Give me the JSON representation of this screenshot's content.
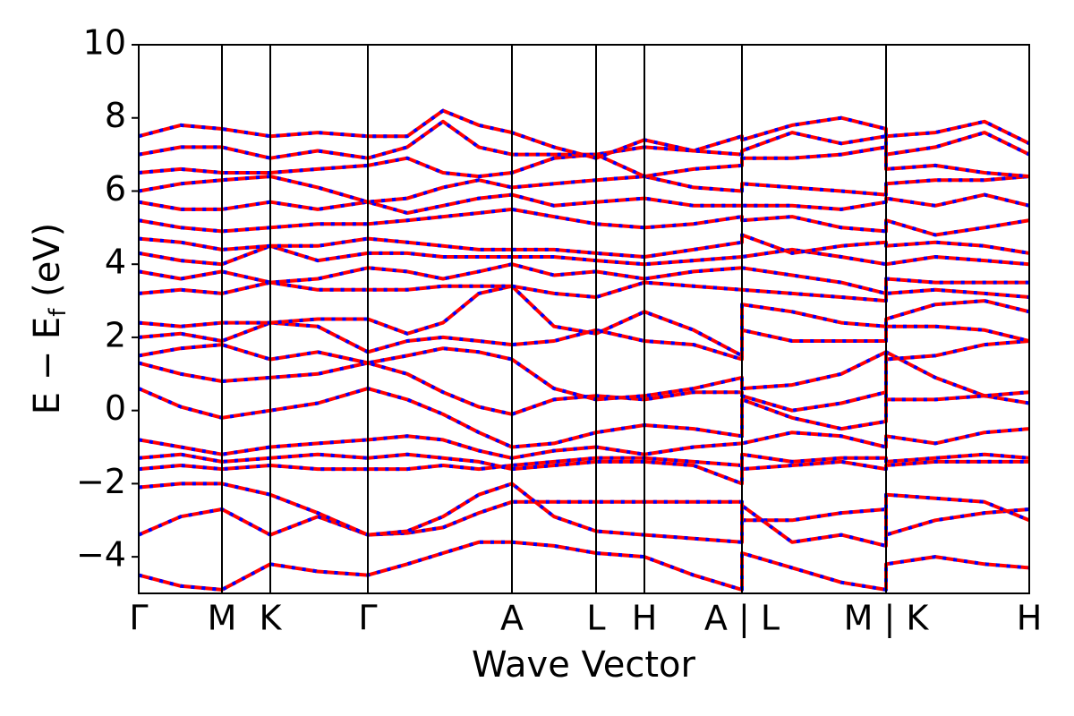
{
  "chart_data": {
    "type": "line",
    "xlabel": "Wave Vector",
    "ylabel": "E − E",
    "ylabel_sub": "f",
    "ylabel_unit": " (eV)",
    "xlim": [
      0,
      9.95
    ],
    "ylim": [
      -5,
      10
    ],
    "xticks": [
      {
        "value": 0,
        "label": "Γ"
      },
      {
        "value": 0.93,
        "label": "M"
      },
      {
        "value": 1.47,
        "label": "K"
      },
      {
        "value": 2.56,
        "label": "Γ"
      },
      {
        "value": 4.17,
        "label": "A"
      },
      {
        "value": 5.11,
        "label": "L"
      },
      {
        "value": 5.65,
        "label": "H"
      },
      {
        "value": 6.74,
        "label": "A | L"
      },
      {
        "value": 8.35,
        "label": "M | K"
      },
      {
        "value": 9.95,
        "label": "H"
      }
    ],
    "yticks": [
      {
        "value": -4,
        "label": "−4"
      },
      {
        "value": -2,
        "label": "−2"
      },
      0,
      2,
      4,
      6,
      8,
      10
    ],
    "color": "#ff0000",
    "dash_color": "#0000ff",
    "kline_color": "#000000",
    "x": [
      0,
      0.47,
      0.93,
      1.47,
      2.0,
      2.56,
      3.0,
      3.4,
      3.8,
      4.17,
      4.64,
      5.11,
      5.65,
      6.2,
      6.74,
      6.74,
      7.3,
      7.85,
      8.35,
      8.35,
      8.9,
      9.45,
      9.95
    ],
    "series": [
      {
        "values": [
          -4.5,
          -4.8,
          -4.9,
          -4.2,
          -4.4,
          -4.5,
          -4.2,
          -3.9,
          -3.6,
          -3.6,
          -3.7,
          -3.9,
          -4.0,
          -4.5,
          -4.9,
          -3.9,
          -4.3,
          -4.7,
          -4.9,
          -4.2,
          -4.0,
          -4.2,
          -4.3
        ]
      },
      {
        "values": [
          -3.4,
          -2.9,
          -2.7,
          -3.4,
          -2.9,
          -3.4,
          -3.35,
          -3.2,
          -2.8,
          -2.5,
          -2.5,
          -2.5,
          -2.5,
          -2.5,
          -2.5,
          -3.0,
          -3.0,
          -2.8,
          -2.7,
          -3.4,
          -3.0,
          -2.8,
          -2.7
        ]
      },
      {
        "values": [
          -2.1,
          -2.0,
          -2.0,
          -2.3,
          -2.8,
          -3.4,
          -3.3,
          -2.9,
          -2.3,
          -2.0,
          -2.9,
          -3.3,
          -3.4,
          -3.5,
          -3.6,
          -2.6,
          -3.6,
          -3.4,
          -3.7,
          -2.3,
          -2.4,
          -2.5,
          -3.0
        ]
      },
      {
        "values": [
          -1.6,
          -1.5,
          -1.6,
          -1.5,
          -1.6,
          -1.6,
          -1.6,
          -1.5,
          -1.6,
          -1.5,
          -1.4,
          -1.3,
          -1.3,
          -1.4,
          -1.5,
          -1.6,
          -1.5,
          -1.4,
          -1.6,
          -1.5,
          -1.4,
          -1.4,
          -1.4
        ]
      },
      {
        "values": [
          -1.3,
          -1.2,
          -1.4,
          -1.3,
          -1.2,
          -1.3,
          -1.2,
          -1.3,
          -1.4,
          -1.6,
          -1.5,
          -1.4,
          -1.4,
          -1.5,
          -2.0,
          -1.2,
          -1.4,
          -1.3,
          -1.3,
          -1.4,
          -1.3,
          -1.2,
          -1.3
        ]
      },
      {
        "values": [
          -0.8,
          -1.0,
          -1.2,
          -1.0,
          -0.9,
          -0.8,
          -0.7,
          -0.8,
          -1.1,
          -1.3,
          -1.1,
          -1.0,
          -1.2,
          -1.0,
          -0.9,
          -0.9,
          -0.6,
          -0.7,
          -1.0,
          -0.7,
          -0.9,
          -0.6,
          -0.5
        ]
      },
      {
        "values": [
          0.6,
          0.1,
          -0.2,
          0.0,
          0.2,
          0.6,
          0.3,
          -0.1,
          -0.6,
          -1.0,
          -0.9,
          -0.6,
          -0.4,
          -0.5,
          -0.7,
          0.3,
          -0.2,
          -0.5,
          -0.3,
          1.6,
          0.9,
          0.4,
          0.2
        ]
      },
      {
        "values": [
          1.3,
          1.0,
          0.8,
          0.9,
          1.0,
          1.3,
          1.0,
          0.5,
          0.1,
          -0.1,
          0.3,
          0.4,
          0.3,
          0.5,
          0.5,
          0.4,
          0.0,
          0.2,
          0.5,
          0.3,
          0.3,
          0.4,
          0.5
        ]
      },
      {
        "values": [
          1.5,
          1.7,
          1.8,
          1.4,
          1.6,
          1.3,
          1.5,
          1.7,
          1.6,
          1.4,
          0.6,
          0.3,
          0.4,
          0.6,
          0.9,
          0.6,
          0.7,
          1.0,
          1.6,
          1.4,
          1.5,
          1.8,
          1.9
        ]
      },
      {
        "values": [
          2.0,
          2.1,
          1.9,
          2.4,
          2.3,
          1.6,
          1.9,
          2.0,
          1.9,
          1.8,
          1.9,
          2.2,
          1.9,
          1.8,
          1.4,
          2.2,
          1.9,
          1.9,
          1.9,
          2.3,
          2.3,
          2.2,
          1.9
        ]
      },
      {
        "values": [
          2.4,
          2.3,
          2.4,
          2.4,
          2.5,
          2.5,
          2.1,
          2.4,
          3.2,
          3.4,
          2.3,
          2.1,
          2.7,
          2.2,
          1.5,
          2.9,
          2.7,
          2.4,
          2.3,
          2.5,
          2.9,
          3.0,
          2.7
        ]
      },
      {
        "values": [
          3.2,
          3.3,
          3.2,
          3.5,
          3.3,
          3.3,
          3.3,
          3.4,
          3.4,
          3.4,
          3.2,
          3.1,
          3.5,
          3.4,
          3.3,
          3.3,
          3.2,
          3.1,
          3.0,
          3.2,
          3.3,
          3.2,
          3.1
        ]
      },
      {
        "values": [
          3.8,
          3.6,
          3.8,
          3.5,
          3.6,
          3.9,
          3.8,
          3.6,
          3.8,
          4.0,
          3.7,
          3.8,
          3.6,
          3.8,
          3.9,
          3.9,
          3.7,
          3.5,
          3.2,
          3.6,
          3.5,
          3.5,
          3.5
        ]
      },
      {
        "values": [
          4.3,
          4.1,
          4.0,
          4.5,
          4.1,
          4.3,
          4.3,
          4.2,
          4.2,
          4.2,
          4.2,
          4.1,
          4.0,
          4.1,
          4.2,
          4.2,
          4.4,
          4.2,
          4.0,
          4.0,
          4.2,
          4.1,
          4.0
        ]
      },
      {
        "values": [
          4.7,
          4.6,
          4.4,
          4.5,
          4.5,
          4.7,
          4.6,
          4.5,
          4.4,
          4.4,
          4.4,
          4.3,
          4.2,
          4.4,
          4.6,
          4.8,
          4.3,
          4.5,
          4.6,
          4.5,
          4.6,
          4.5,
          4.3
        ]
      },
      {
        "values": [
          5.2,
          5.0,
          4.9,
          5.0,
          5.1,
          5.1,
          5.2,
          5.3,
          5.4,
          5.5,
          5.3,
          5.1,
          5.0,
          5.1,
          5.3,
          5.2,
          5.3,
          5.0,
          4.9,
          5.2,
          4.8,
          5.0,
          5.2
        ]
      },
      {
        "values": [
          5.7,
          5.5,
          5.5,
          5.7,
          5.5,
          5.7,
          5.4,
          5.6,
          5.8,
          5.9,
          5.6,
          5.7,
          5.8,
          5.6,
          5.6,
          5.6,
          5.6,
          5.5,
          5.7,
          5.8,
          5.6,
          5.9,
          5.6
        ]
      },
      {
        "values": [
          6.0,
          6.2,
          6.3,
          6.4,
          6.1,
          5.7,
          5.8,
          6.1,
          6.3,
          6.1,
          6.2,
          6.3,
          6.4,
          6.1,
          6.0,
          6.2,
          6.1,
          6.0,
          5.9,
          6.2,
          6.3,
          6.3,
          6.4
        ]
      },
      {
        "values": [
          6.5,
          6.6,
          6.5,
          6.5,
          6.6,
          6.7,
          6.9,
          6.5,
          6.4,
          6.5,
          6.9,
          7.0,
          6.4,
          6.6,
          6.7,
          6.9,
          6.9,
          7.0,
          7.2,
          6.6,
          6.7,
          6.5,
          6.4
        ]
      },
      {
        "values": [
          7.0,
          7.2,
          7.2,
          6.9,
          7.1,
          6.9,
          7.2,
          7.9,
          7.2,
          7.0,
          7.0,
          7.0,
          7.2,
          7.1,
          7.0,
          7.1,
          7.6,
          7.3,
          7.5,
          7.0,
          7.2,
          7.6,
          7.0
        ]
      },
      {
        "values": [
          7.5,
          7.8,
          7.7,
          7.5,
          7.6,
          7.5,
          7.5,
          8.2,
          7.8,
          7.6,
          7.2,
          6.9,
          7.4,
          7.1,
          7.5,
          7.4,
          7.8,
          8.0,
          7.7,
          7.5,
          7.6,
          7.9,
          7.3
        ]
      }
    ]
  }
}
